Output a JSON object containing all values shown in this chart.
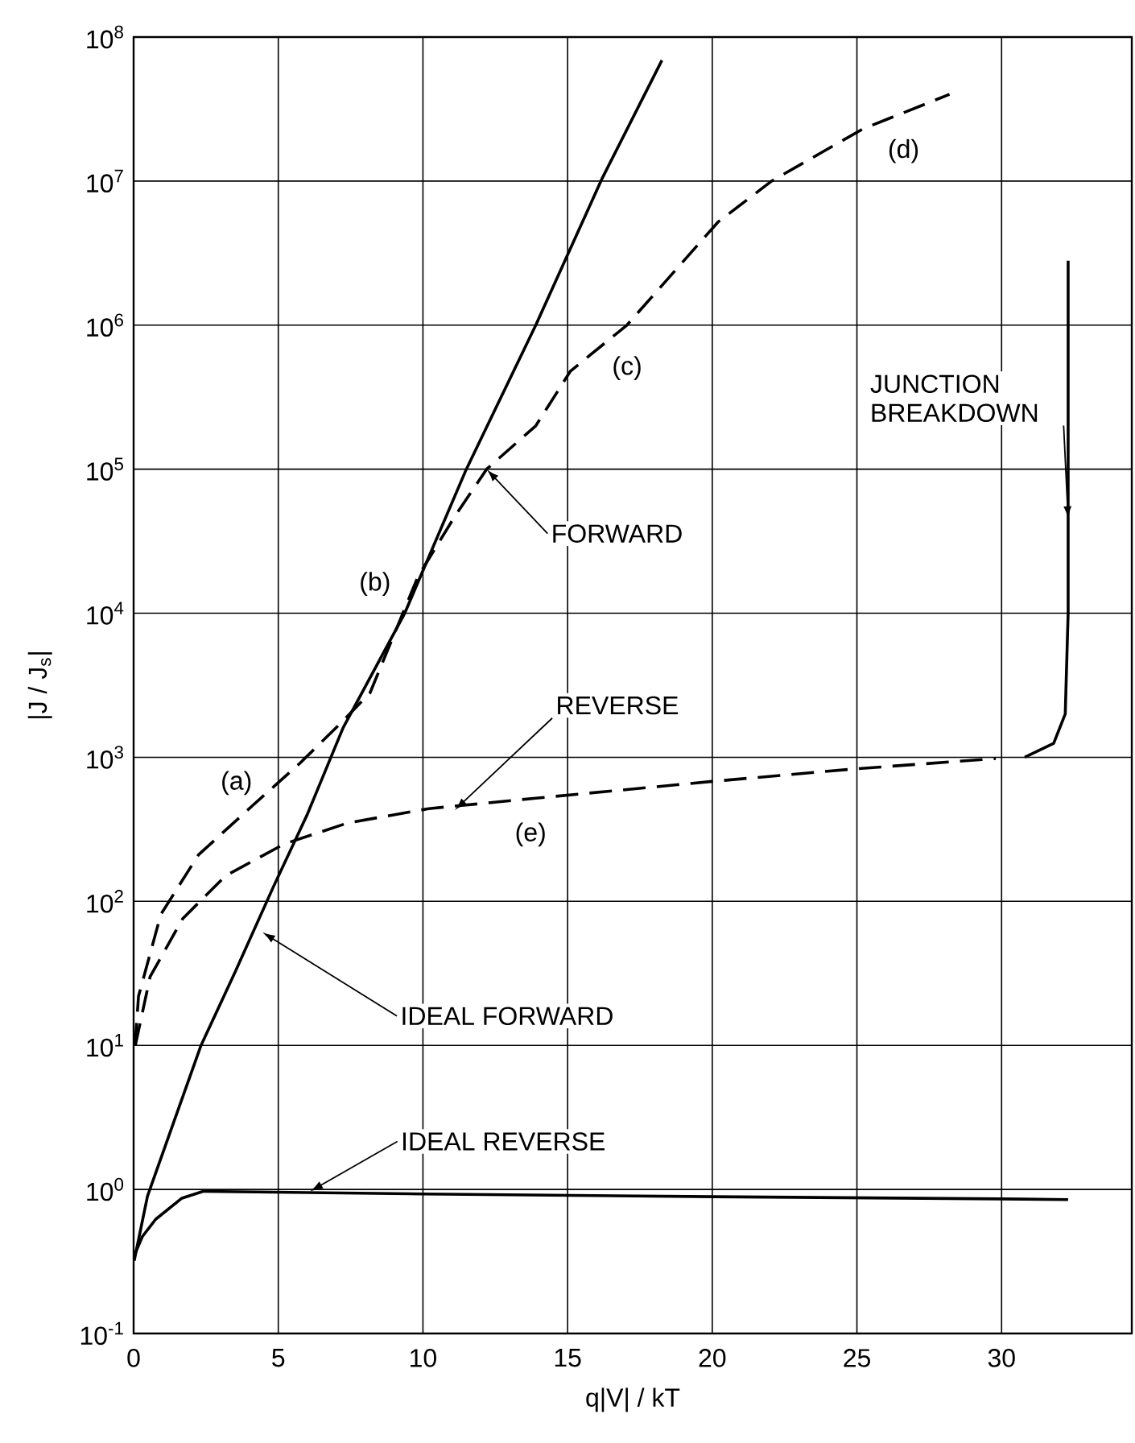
{
  "chart_data": {
    "type": "line",
    "xlabel": "q|V| / kT",
    "ylabel": "|J / J$_{s}$|",
    "log": "y",
    "grid": true,
    "xlim": [
      0,
      34.5
    ],
    "xticks": [
      0,
      5,
      10,
      15,
      20,
      25,
      30
    ],
    "ylim": [
      0.1,
      100000000
    ],
    "yticks": [
      {
        "value": 0.1,
        "label": "10$^{-1}$"
      },
      {
        "value": 1,
        "label": "10$^{0}$"
      },
      {
        "value": 10,
        "label": "10$^{1}$"
      },
      {
        "value": 100,
        "label": "10$^{2}$"
      },
      {
        "value": 1000,
        "label": "10$^{3}$"
      },
      {
        "value": 10000,
        "label": "10$^{4}$"
      },
      {
        "value": 100000,
        "label": "10$^{5}$"
      },
      {
        "value": 1000000,
        "label": "10$^{6}$"
      },
      {
        "value": 10000000,
        "label": "10$^{7}$"
      },
      {
        "value": 100000000,
        "label": "10$^{8}$"
      }
    ],
    "series": [
      {
        "color": "#000000",
        "line_style": "solid",
        "x": [
          0.02,
          0.48,
          1.2,
          2.33,
          3.5,
          4.83,
          6,
          7.24,
          9.37,
          11.5,
          13.9,
          16.2,
          18.26
        ],
        "values": [
          0.32,
          0.9,
          2.3,
          10,
          32,
          126,
          400,
          1600,
          10000,
          100000,
          1000000,
          10500000,
          69000000
        ]
      },
      {
        "color": "#000000",
        "line_style": "dashed",
        "x": [
          0.05,
          0.17,
          0.94,
          2.24,
          4.1,
          5.75,
          7.25,
          8.17,
          9.83,
          11.1,
          12.2,
          13.9,
          15.1,
          17.05,
          20.2,
          22.05,
          25.2,
          28.2
        ],
        "values": [
          10,
          22,
          81,
          210,
          460,
          910,
          1800,
          2800,
          18000,
          47000,
          100000,
          200000,
          480000,
          1000000,
          5200000,
          10000000,
          23000000,
          40000000
        ]
      },
      {
        "color": "#000000",
        "line_style": "dashed",
        "x": [
          0.06,
          0.57,
          1.7,
          3.17,
          5.2,
          7.4,
          10.2,
          13.9,
          20,
          24.9,
          29.8
        ],
        "values": [
          10,
          30,
          76,
          150,
          250,
          350,
          440,
          520,
          680,
          830,
          980
        ]
      },
      {
        "color": "#000000",
        "line_style": "solid",
        "x": [
          30.8,
          31.8,
          32.2,
          32.3,
          32.3
        ],
        "values": [
          1000,
          1250,
          2000,
          10000,
          2800000
        ]
      },
      {
        "color": "#000000",
        "line_style": "solid",
        "x": [
          0,
          0.3,
          0.76,
          1.67,
          2.4,
          10,
          20,
          30,
          32.3
        ],
        "values": [
          0.34,
          0.47,
          0.62,
          0.87,
          0.97,
          0.93,
          0.89,
          0.86,
          0.85
        ]
      }
    ],
    "annotations": [
      {
        "text": "(a)",
        "x": 4.5,
        "y": 500
      },
      {
        "text": "(b)",
        "x": 9.9,
        "y": 16000
      },
      {
        "text": "(c)",
        "x": 16,
        "y": 800000
      },
      {
        "text": "(d)",
        "x": 25.5,
        "y": 25000000
      },
      {
        "text": "(e)",
        "x": 13.5,
        "y": 500
      },
      {
        "text": "FORWARD",
        "x": 12.2,
        "y": 100000
      },
      {
        "text": "REVERSE",
        "x": 11.1,
        "y": 430
      },
      {
        "text": "IDEAL FORWARD",
        "x": 4.45,
        "y": 61
      },
      {
        "text": "IDEAL REVERSE",
        "x": 6.1,
        "y": 0.97
      },
      {
        "text": "JUNCTION BREAKDOWN",
        "x": 32.3,
        "y": 45000
      }
    ]
  }
}
